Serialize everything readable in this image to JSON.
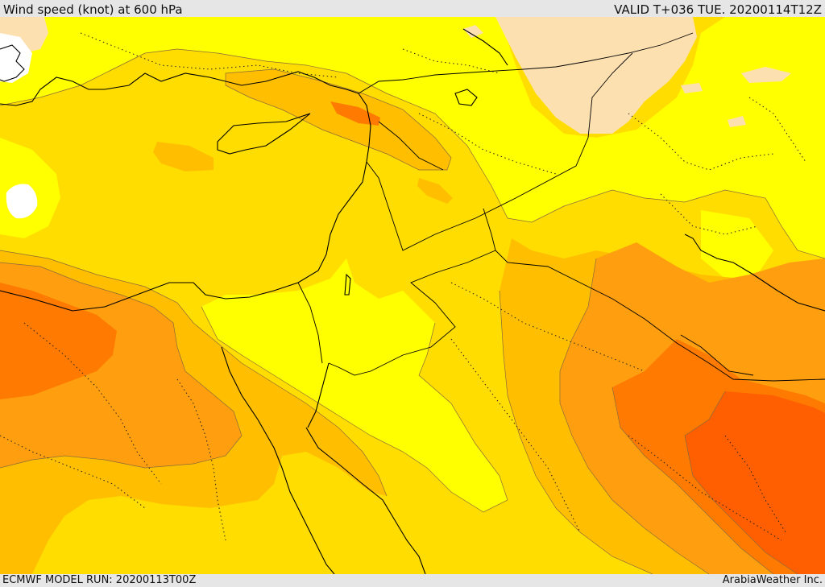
{
  "header": {
    "title": "Wind speed (knot) at 600 hPa",
    "valid": "VALID T+036 TUE. 20200114T12Z"
  },
  "footer": {
    "model_run": "ECMWF MODEL RUN: 20200113T00Z",
    "credit": "ArabiaWeather Inc."
  },
  "map": {
    "variable": "Wind speed",
    "unit": "knot",
    "level_hpa": 600,
    "colors": {
      "very_light": "#ffffff",
      "light": "#fde0b0",
      "yellow": "#ffff00",
      "gold": "#ffdd00",
      "amber": "#ffbf00",
      "orange": "#ff9f0f",
      "dark_orange": "#ff7a00",
      "red_orange": "#ff5f00"
    }
  }
}
